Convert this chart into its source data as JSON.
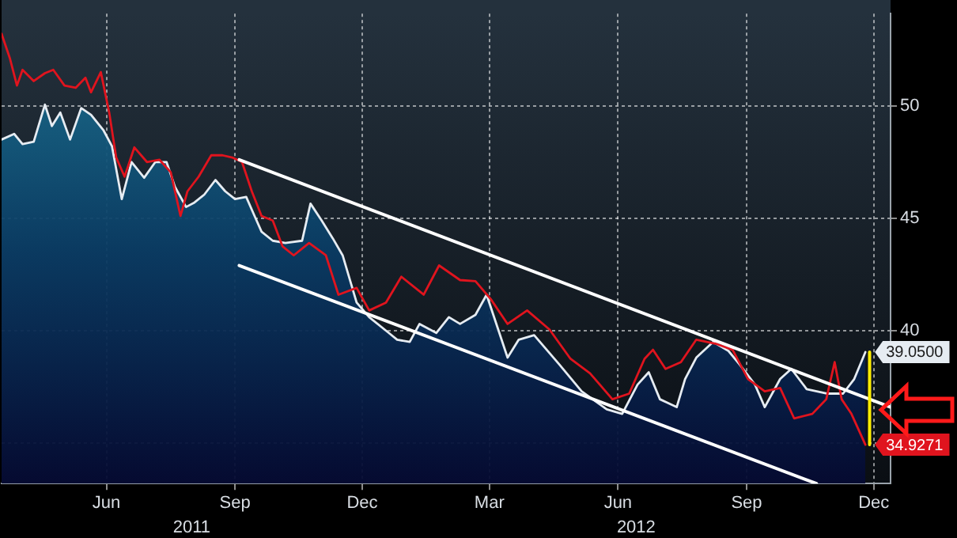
{
  "chart_data": {
    "type": "line",
    "xlim": [
      "2011-04-01",
      "2012-12-27"
    ],
    "xticks": [
      {
        "value": "2011-06-15",
        "label": "Jun"
      },
      {
        "value": "2011-09-15",
        "label": "Sep"
      },
      {
        "value": "2011-12-15",
        "label": "Dec"
      },
      {
        "value": "2012-03-15",
        "label": "Mar"
      },
      {
        "value": "2012-06-15",
        "label": "Jun"
      },
      {
        "value": "2012-09-15",
        "label": "Sep"
      },
      {
        "value": "2012-12-15",
        "label": "Dec"
      }
    ],
    "x2lim": [
      "2011-04-01",
      "2012-12-27"
    ],
    "x2ticks": [
      {
        "value": "2011-08-15",
        "label": "2011"
      },
      {
        "value": "2012-06-28",
        "label": "2012"
      }
    ],
    "ylim": [
      33.2,
      54.1
    ],
    "yticks": [
      {
        "value": 35,
        "label": null
      },
      40,
      45,
      50
    ],
    "grid": true,
    "legend": false,
    "marker": "none",
    "series": [
      {
        "type": "area",
        "color": "#e6ecf2",
        "x": [
          "2011-04-01",
          "2011-04-10",
          "2011-04-16",
          "2011-04-24",
          "2011-05-02",
          "2011-05-07",
          "2011-05-13",
          "2011-05-20",
          "2011-05-28",
          "2011-06-04",
          "2011-06-13",
          "2011-06-19",
          "2011-06-26",
          "2011-07-03",
          "2011-07-12",
          "2011-07-20",
          "2011-07-28",
          "2011-08-03",
          "2011-08-11",
          "2011-08-17",
          "2011-08-24",
          "2011-09-01",
          "2011-09-08",
          "2011-09-15",
          "2011-09-23",
          "2011-09-29",
          "2011-10-04",
          "2011-10-12",
          "2011-10-21",
          "2011-11-02",
          "2011-11-08",
          "2011-11-16",
          "2011-11-24",
          "2011-12-01",
          "2011-12-11",
          "2011-12-20",
          "2012-01-03",
          "2012-01-09",
          "2012-01-18",
          "2012-01-25",
          "2012-02-06",
          "2012-02-15",
          "2012-02-23",
          "2012-03-05",
          "2012-03-13",
          "2012-03-28",
          "2012-04-05",
          "2012-04-16",
          "2012-05-04",
          "2012-05-20",
          "2012-06-07",
          "2012-06-18",
          "2012-06-29",
          "2012-07-07",
          "2012-07-15",
          "2012-07-27",
          "2012-08-02",
          "2012-08-10",
          "2012-08-22",
          "2012-09-02",
          "2012-09-10",
          "2012-09-21",
          "2012-09-28",
          "2012-10-09",
          "2012-10-17",
          "2012-10-28",
          "2012-11-12",
          "2012-11-23",
          "2012-12-01",
          "2012-12-09"
        ],
        "values": [
          48.5,
          48.75,
          48.3,
          48.4,
          50.05,
          49.1,
          49.7,
          48.5,
          49.9,
          49.6,
          48.9,
          48.2,
          45.85,
          47.5,
          46.8,
          47.5,
          47.5,
          46.4,
          45.5,
          45.7,
          46.05,
          46.7,
          46.2,
          45.85,
          45.95,
          45.1,
          44.4,
          44.0,
          43.9,
          44.0,
          45.65,
          44.9,
          44.1,
          43.35,
          41.25,
          40.6,
          39.9,
          39.6,
          39.5,
          40.3,
          39.9,
          40.6,
          40.3,
          40.7,
          41.6,
          38.8,
          39.6,
          39.8,
          38.5,
          37.3,
          36.5,
          36.3,
          37.6,
          38.15,
          36.95,
          36.6,
          37.85,
          38.8,
          39.5,
          39.1,
          38.5,
          37.6,
          36.6,
          37.85,
          38.3,
          37.4,
          37.2,
          37.2,
          37.85,
          39.05
        ],
        "value_labels": [
          null,
          null,
          null,
          null,
          null,
          null,
          null,
          null,
          null,
          null,
          null,
          null,
          null,
          null,
          null,
          null,
          null,
          null,
          null,
          null,
          null,
          null,
          null,
          null,
          null,
          null,
          null,
          null,
          null,
          null,
          null,
          null,
          null,
          null,
          null,
          null,
          null,
          null,
          null,
          null,
          null,
          null,
          null,
          null,
          null,
          null,
          null,
          null,
          null,
          null,
          null,
          null,
          null,
          null,
          null,
          null,
          null,
          null,
          null,
          null,
          null,
          null,
          null,
          null,
          null,
          null,
          null,
          null,
          null,
          "39.0500"
        ]
      },
      {
        "type": "line",
        "color": "#e0141e",
        "x": [
          "2011-04-01",
          "2011-04-07",
          "2011-04-12",
          "2011-04-16",
          "2011-04-24",
          "2011-05-02",
          "2011-05-08",
          "2011-05-16",
          "2011-05-24",
          "2011-05-31",
          "2011-06-04",
          "2011-06-11",
          "2011-06-17",
          "2011-06-22",
          "2011-06-28",
          "2011-07-05",
          "2011-07-14",
          "2011-07-23",
          "2011-07-31",
          "2011-08-07",
          "2011-08-12",
          "2011-08-20",
          "2011-08-29",
          "2011-09-06",
          "2011-09-13",
          "2011-09-20",
          "2011-09-27",
          "2011-10-04",
          "2011-10-12",
          "2011-10-19",
          "2011-10-27",
          "2011-11-07",
          "2011-11-19",
          "2011-11-28",
          "2011-12-11",
          "2011-12-20",
          "2012-01-01",
          "2012-01-12",
          "2012-01-28",
          "2012-02-08",
          "2012-02-23",
          "2012-03-05",
          "2012-03-16",
          "2012-03-28",
          "2012-04-11",
          "2012-04-27",
          "2012-05-12",
          "2012-05-26",
          "2012-06-11",
          "2012-06-23",
          "2012-07-04",
          "2012-07-10",
          "2012-07-19",
          "2012-07-30",
          "2012-08-10",
          "2012-08-25",
          "2012-09-05",
          "2012-09-16",
          "2012-09-28",
          "2012-10-09",
          "2012-10-19",
          "2012-11-01",
          "2012-11-11",
          "2012-11-17",
          "2012-11-22",
          "2012-11-29",
          "2012-12-09"
        ],
        "values": [
          53.2,
          52.1,
          50.9,
          51.6,
          51.1,
          51.45,
          51.6,
          50.9,
          50.8,
          51.25,
          50.6,
          51.5,
          49.7,
          47.7,
          46.85,
          48.15,
          47.5,
          47.6,
          47.05,
          45.1,
          46.2,
          46.85,
          47.8,
          47.8,
          47.7,
          47.5,
          46.2,
          45.1,
          44.9,
          43.75,
          43.35,
          43.9,
          43.35,
          41.6,
          41.9,
          40.9,
          41.25,
          42.4,
          41.6,
          42.9,
          42.25,
          42.2,
          41.4,
          40.3,
          40.9,
          40.05,
          38.75,
          38.1,
          36.95,
          37.2,
          38.75,
          39.15,
          38.3,
          38.6,
          39.6,
          39.4,
          39.15,
          37.85,
          37.3,
          37.45,
          36.1,
          36.3,
          36.95,
          38.6,
          36.95,
          36.3,
          34.9271
        ],
        "value_labels": [
          null,
          null,
          null,
          null,
          null,
          null,
          null,
          null,
          null,
          null,
          null,
          null,
          null,
          null,
          null,
          null,
          null,
          null,
          null,
          null,
          null,
          null,
          null,
          null,
          null,
          null,
          null,
          null,
          null,
          null,
          null,
          null,
          null,
          null,
          null,
          null,
          null,
          null,
          null,
          null,
          null,
          null,
          null,
          null,
          null,
          null,
          null,
          null,
          null,
          null,
          null,
          null,
          null,
          null,
          null,
          null,
          null,
          null,
          null,
          null,
          null,
          null,
          null,
          null,
          null,
          null,
          "34.9271"
        ]
      },
      {
        "type": "line",
        "color": "#ffffff",
        "x": [
          "2011-09-18",
          "2012-12-27"
        ],
        "values": [
          47.6,
          36.6
        ]
      },
      {
        "type": "line",
        "color": "#ffffff",
        "x": [
          "2011-09-18",
          "2012-11-04"
        ],
        "values": [
          42.9,
          33.2
        ]
      },
      {
        "type": "line",
        "color": "#ffee00",
        "x": [
          "2012-12-12",
          "2012-12-12"
        ],
        "values": [
          39.05,
          34.93
        ]
      }
    ]
  }
}
